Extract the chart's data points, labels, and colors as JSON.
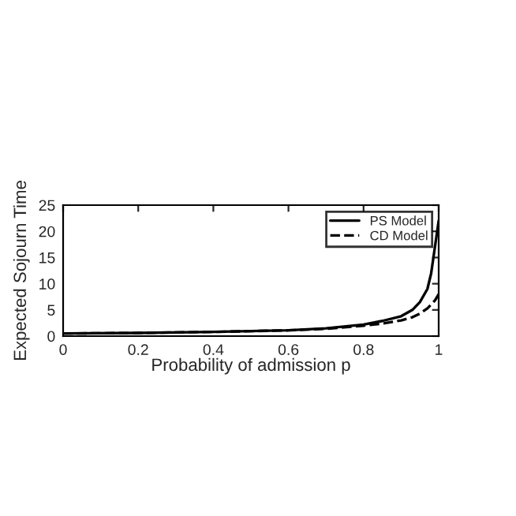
{
  "chart_data": {
    "type": "line",
    "xlabel": "Probability of admission p",
    "ylabel": "Expected Sojourn Time",
    "xlim": [
      0,
      1
    ],
    "ylim": [
      0,
      25
    ],
    "xticks": [
      0,
      0.2,
      0.4,
      0.6,
      0.8,
      1
    ],
    "yticks": [
      0,
      5,
      10,
      15,
      20,
      25
    ],
    "legend": "top right",
    "grid": false,
    "series": [
      {
        "name": "PS Model",
        "color": "#000000",
        "line_style": "solid",
        "x": [
          0,
          0.2,
          0.4,
          0.6,
          0.7,
          0.8,
          0.85,
          0.9,
          0.93,
          0.95,
          0.97,
          0.98,
          0.99,
          1.0
        ],
        "values": [
          0.5,
          0.6,
          0.8,
          1.1,
          1.5,
          2.2,
          2.9,
          3.8,
          5,
          6.5,
          9,
          12,
          17,
          22
        ]
      },
      {
        "name": "CD Model",
        "color": "#000000",
        "line_style": "dashed",
        "x": [
          0,
          0.2,
          0.4,
          0.6,
          0.7,
          0.8,
          0.85,
          0.9,
          0.93,
          0.95,
          0.97,
          0.99,
          1.0
        ],
        "values": [
          0.5,
          0.6,
          0.8,
          1.1,
          1.4,
          2.0,
          2.4,
          3.0,
          3.6,
          4.3,
          5.3,
          6.8,
          8
        ]
      }
    ]
  }
}
